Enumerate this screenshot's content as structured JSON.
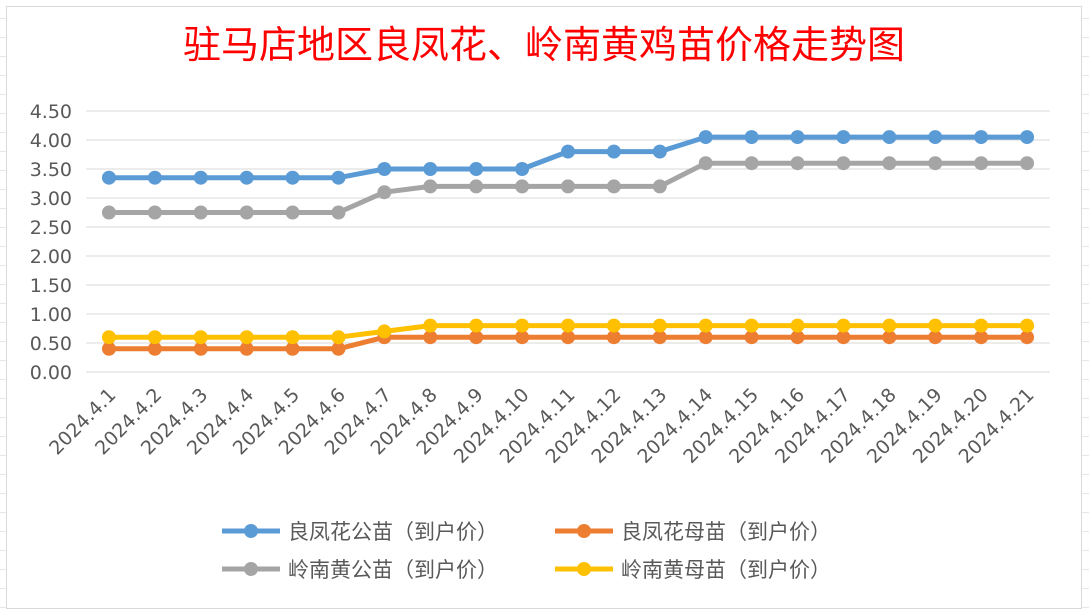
{
  "chart_data": {
    "type": "line",
    "title": "驻马店地区良凤花、岭南黄鸡苗价格走势图",
    "xlabel": "",
    "ylabel": "",
    "ylim": [
      0,
      4.5
    ],
    "ytick_labels": [
      "0.00",
      "0.50",
      "1.00",
      "1.50",
      "2.00",
      "2.50",
      "3.00",
      "3.50",
      "4.00",
      "4.50"
    ],
    "grid": true,
    "legend_position": "bottom",
    "categories": [
      "2024.4.1",
      "2024.4.2",
      "2024.4.3",
      "2024.4.4",
      "2024.4.5",
      "2024.4.6",
      "2024.4.7",
      "2024.4.8",
      "2024.4.9",
      "2024.4.10",
      "2024.4.11",
      "2024.4.12",
      "2024.4.13",
      "2024.4.14",
      "2024.4.15",
      "2024.4.16",
      "2024.4.17",
      "2024.4.18",
      "2024.4.19",
      "2024.4.20",
      "2024.4.21"
    ],
    "series": [
      {
        "name": "良凤花公苗（到户价）",
        "color": "#5b9bd5",
        "values": [
          3.35,
          3.35,
          3.35,
          3.35,
          3.35,
          3.35,
          3.5,
          3.5,
          3.5,
          3.5,
          3.8,
          3.8,
          3.8,
          4.05,
          4.05,
          4.05,
          4.05,
          4.05,
          4.05,
          4.05,
          4.05
        ]
      },
      {
        "name": "良凤花母苗（到户价）",
        "color": "#ed7d31",
        "values": [
          0.4,
          0.4,
          0.4,
          0.4,
          0.4,
          0.4,
          0.6,
          0.6,
          0.6,
          0.6,
          0.6,
          0.6,
          0.6,
          0.6,
          0.6,
          0.6,
          0.6,
          0.6,
          0.6,
          0.6,
          0.6
        ]
      },
      {
        "name": "岭南黄公苗（到户价）",
        "color": "#a5a5a5",
        "values": [
          2.75,
          2.75,
          2.75,
          2.75,
          2.75,
          2.75,
          3.1,
          3.2,
          3.2,
          3.2,
          3.2,
          3.2,
          3.2,
          3.6,
          3.6,
          3.6,
          3.6,
          3.6,
          3.6,
          3.6,
          3.6
        ]
      },
      {
        "name": "岭南黄母苗（到户价）",
        "color": "#ffc000",
        "values": [
          0.6,
          0.6,
          0.6,
          0.6,
          0.6,
          0.6,
          0.7,
          0.8,
          0.8,
          0.8,
          0.8,
          0.8,
          0.8,
          0.8,
          0.8,
          0.8,
          0.8,
          0.8,
          0.8,
          0.8,
          0.8
        ]
      }
    ]
  }
}
